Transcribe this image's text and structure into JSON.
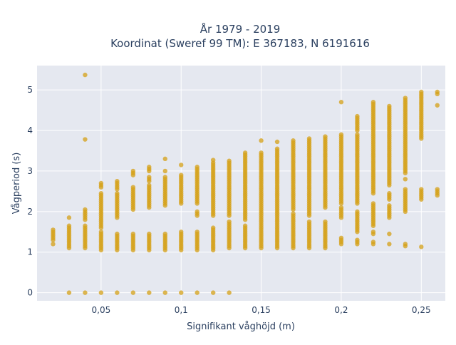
{
  "chart_data": {
    "type": "scatter",
    "title_line1": "År 1979 - 2019",
    "title_line2": "Koordinat (Sweref 99 TM): E 367183, N 6191616",
    "xlabel": "Signifikant våghöjd (m)",
    "ylabel": "Vågperiod (s)",
    "xlim": [
      0.01,
      0.265
    ],
    "ylim": [
      -0.2,
      5.6
    ],
    "x_ticks": [
      {
        "value": 0.05,
        "label": "0,05"
      },
      {
        "value": 0.1,
        "label": "0,1"
      },
      {
        "value": 0.15,
        "label": "0,15"
      },
      {
        "value": 0.2,
        "label": "0,2"
      },
      {
        "value": 0.25,
        "label": "0,25"
      }
    ],
    "y_ticks": [
      {
        "value": 0,
        "label": "0"
      },
      {
        "value": 1,
        "label": "1"
      },
      {
        "value": 2,
        "label": "2"
      },
      {
        "value": 3,
        "label": "3"
      },
      {
        "value": 4,
        "label": "4"
      },
      {
        "value": 5,
        "label": "5"
      }
    ],
    "grid": true,
    "marker_color": "#d4a017",
    "plot_bg": "#e5e8f0",
    "columns": [
      {
        "x": 0.02,
        "ranges": [
          [
            1.2,
            1.2
          ],
          [
            1.3,
            1.55
          ]
        ]
      },
      {
        "x": 0.03,
        "ranges": [
          [
            0,
            0
          ],
          [
            1.1,
            1.65
          ],
          [
            1.85,
            1.85
          ]
        ]
      },
      {
        "x": 0.04,
        "ranges": [
          [
            0,
            0
          ],
          [
            1.1,
            1.65
          ],
          [
            1.8,
            2.05
          ],
          [
            3.78,
            3.78
          ],
          [
            5.37,
            5.37
          ]
        ]
      },
      {
        "x": 0.05,
        "ranges": [
          [
            0,
            0
          ],
          [
            1.05,
            1.5
          ],
          [
            1.6,
            2.45
          ],
          [
            2.6,
            2.7
          ]
        ]
      },
      {
        "x": 0.06,
        "ranges": [
          [
            0,
            0
          ],
          [
            1.05,
            1.45
          ],
          [
            1.85,
            2.45
          ],
          [
            2.55,
            2.75
          ]
        ]
      },
      {
        "x": 0.07,
        "ranges": [
          [
            0,
            0
          ],
          [
            1.05,
            1.45
          ],
          [
            2.05,
            2.6
          ],
          [
            2.9,
            3.0
          ]
        ]
      },
      {
        "x": 0.08,
        "ranges": [
          [
            0,
            0
          ],
          [
            1.05,
            1.45
          ],
          [
            2.1,
            2.65
          ],
          [
            2.75,
            2.85
          ],
          [
            3.0,
            3.1
          ]
        ]
      },
      {
        "x": 0.09,
        "ranges": [
          [
            0,
            0
          ],
          [
            1.05,
            1.45
          ],
          [
            2.15,
            2.85
          ],
          [
            3.0,
            3.0
          ],
          [
            3.3,
            3.3
          ]
        ]
      },
      {
        "x": 0.1,
        "ranges": [
          [
            0,
            0
          ],
          [
            1.05,
            1.5
          ],
          [
            2.2,
            2.9
          ],
          [
            3.15,
            3.15
          ]
        ]
      },
      {
        "x": 0.11,
        "ranges": [
          [
            0,
            0
          ],
          [
            1.05,
            1.5
          ],
          [
            1.9,
            2.0
          ],
          [
            2.2,
            3.1
          ]
        ]
      },
      {
        "x": 0.12,
        "ranges": [
          [
            0,
            0
          ],
          [
            1.05,
            1.6
          ],
          [
            1.9,
            3.2
          ],
          [
            3.27,
            3.27
          ]
        ]
      },
      {
        "x": 0.13,
        "ranges": [
          [
            0,
            0
          ],
          [
            1.1,
            1.75
          ],
          [
            1.9,
            3.25
          ]
        ]
      },
      {
        "x": 0.14,
        "ranges": [
          [
            1.1,
            1.65
          ],
          [
            1.8,
            3.45
          ]
        ]
      },
      {
        "x": 0.15,
        "ranges": [
          [
            1.1,
            3.45
          ],
          [
            3.75,
            3.75
          ]
        ]
      },
      {
        "x": 0.16,
        "ranges": [
          [
            1.1,
            3.55
          ],
          [
            3.72,
            3.72
          ]
        ]
      },
      {
        "x": 0.17,
        "ranges": [
          [
            1.1,
            1.95
          ],
          [
            2.05,
            3.75
          ]
        ]
      },
      {
        "x": 0.18,
        "ranges": [
          [
            1.1,
            1.75
          ],
          [
            1.9,
            3.8
          ]
        ]
      },
      {
        "x": 0.19,
        "ranges": [
          [
            1.1,
            1.75
          ],
          [
            2.1,
            3.85
          ]
        ]
      },
      {
        "x": 0.2,
        "ranges": [
          [
            1.2,
            1.35
          ],
          [
            1.85,
            2.1
          ],
          [
            2.2,
            3.9
          ],
          [
            4.7,
            4.7
          ]
        ]
      },
      {
        "x": 0.21,
        "ranges": [
          [
            1.2,
            1.3
          ],
          [
            1.5,
            2.0
          ],
          [
            2.2,
            3.9
          ],
          [
            4.0,
            4.35
          ]
        ]
      },
      {
        "x": 0.22,
        "ranges": [
          [
            1.2,
            1.25
          ],
          [
            1.45,
            1.5
          ],
          [
            1.65,
            2.2
          ],
          [
            2.45,
            4.7
          ]
        ]
      },
      {
        "x": 0.23,
        "ranges": [
          [
            1.2,
            1.2
          ],
          [
            1.45,
            1.45
          ],
          [
            1.85,
            2.15
          ],
          [
            2.3,
            2.45
          ],
          [
            2.65,
            4.6
          ]
        ]
      },
      {
        "x": 0.24,
        "ranges": [
          [
            1.15,
            1.2
          ],
          [
            2.0,
            2.55
          ],
          [
            2.8,
            2.8
          ],
          [
            2.95,
            4.8
          ]
        ]
      },
      {
        "x": 0.25,
        "ranges": [
          [
            1.13,
            1.13
          ],
          [
            2.3,
            2.55
          ],
          [
            3.8,
            4.95
          ]
        ]
      },
      {
        "x": 0.26,
        "ranges": [
          [
            2.4,
            2.55
          ],
          [
            4.62,
            4.65
          ],
          [
            4.9,
            4.97
          ]
        ]
      }
    ]
  }
}
